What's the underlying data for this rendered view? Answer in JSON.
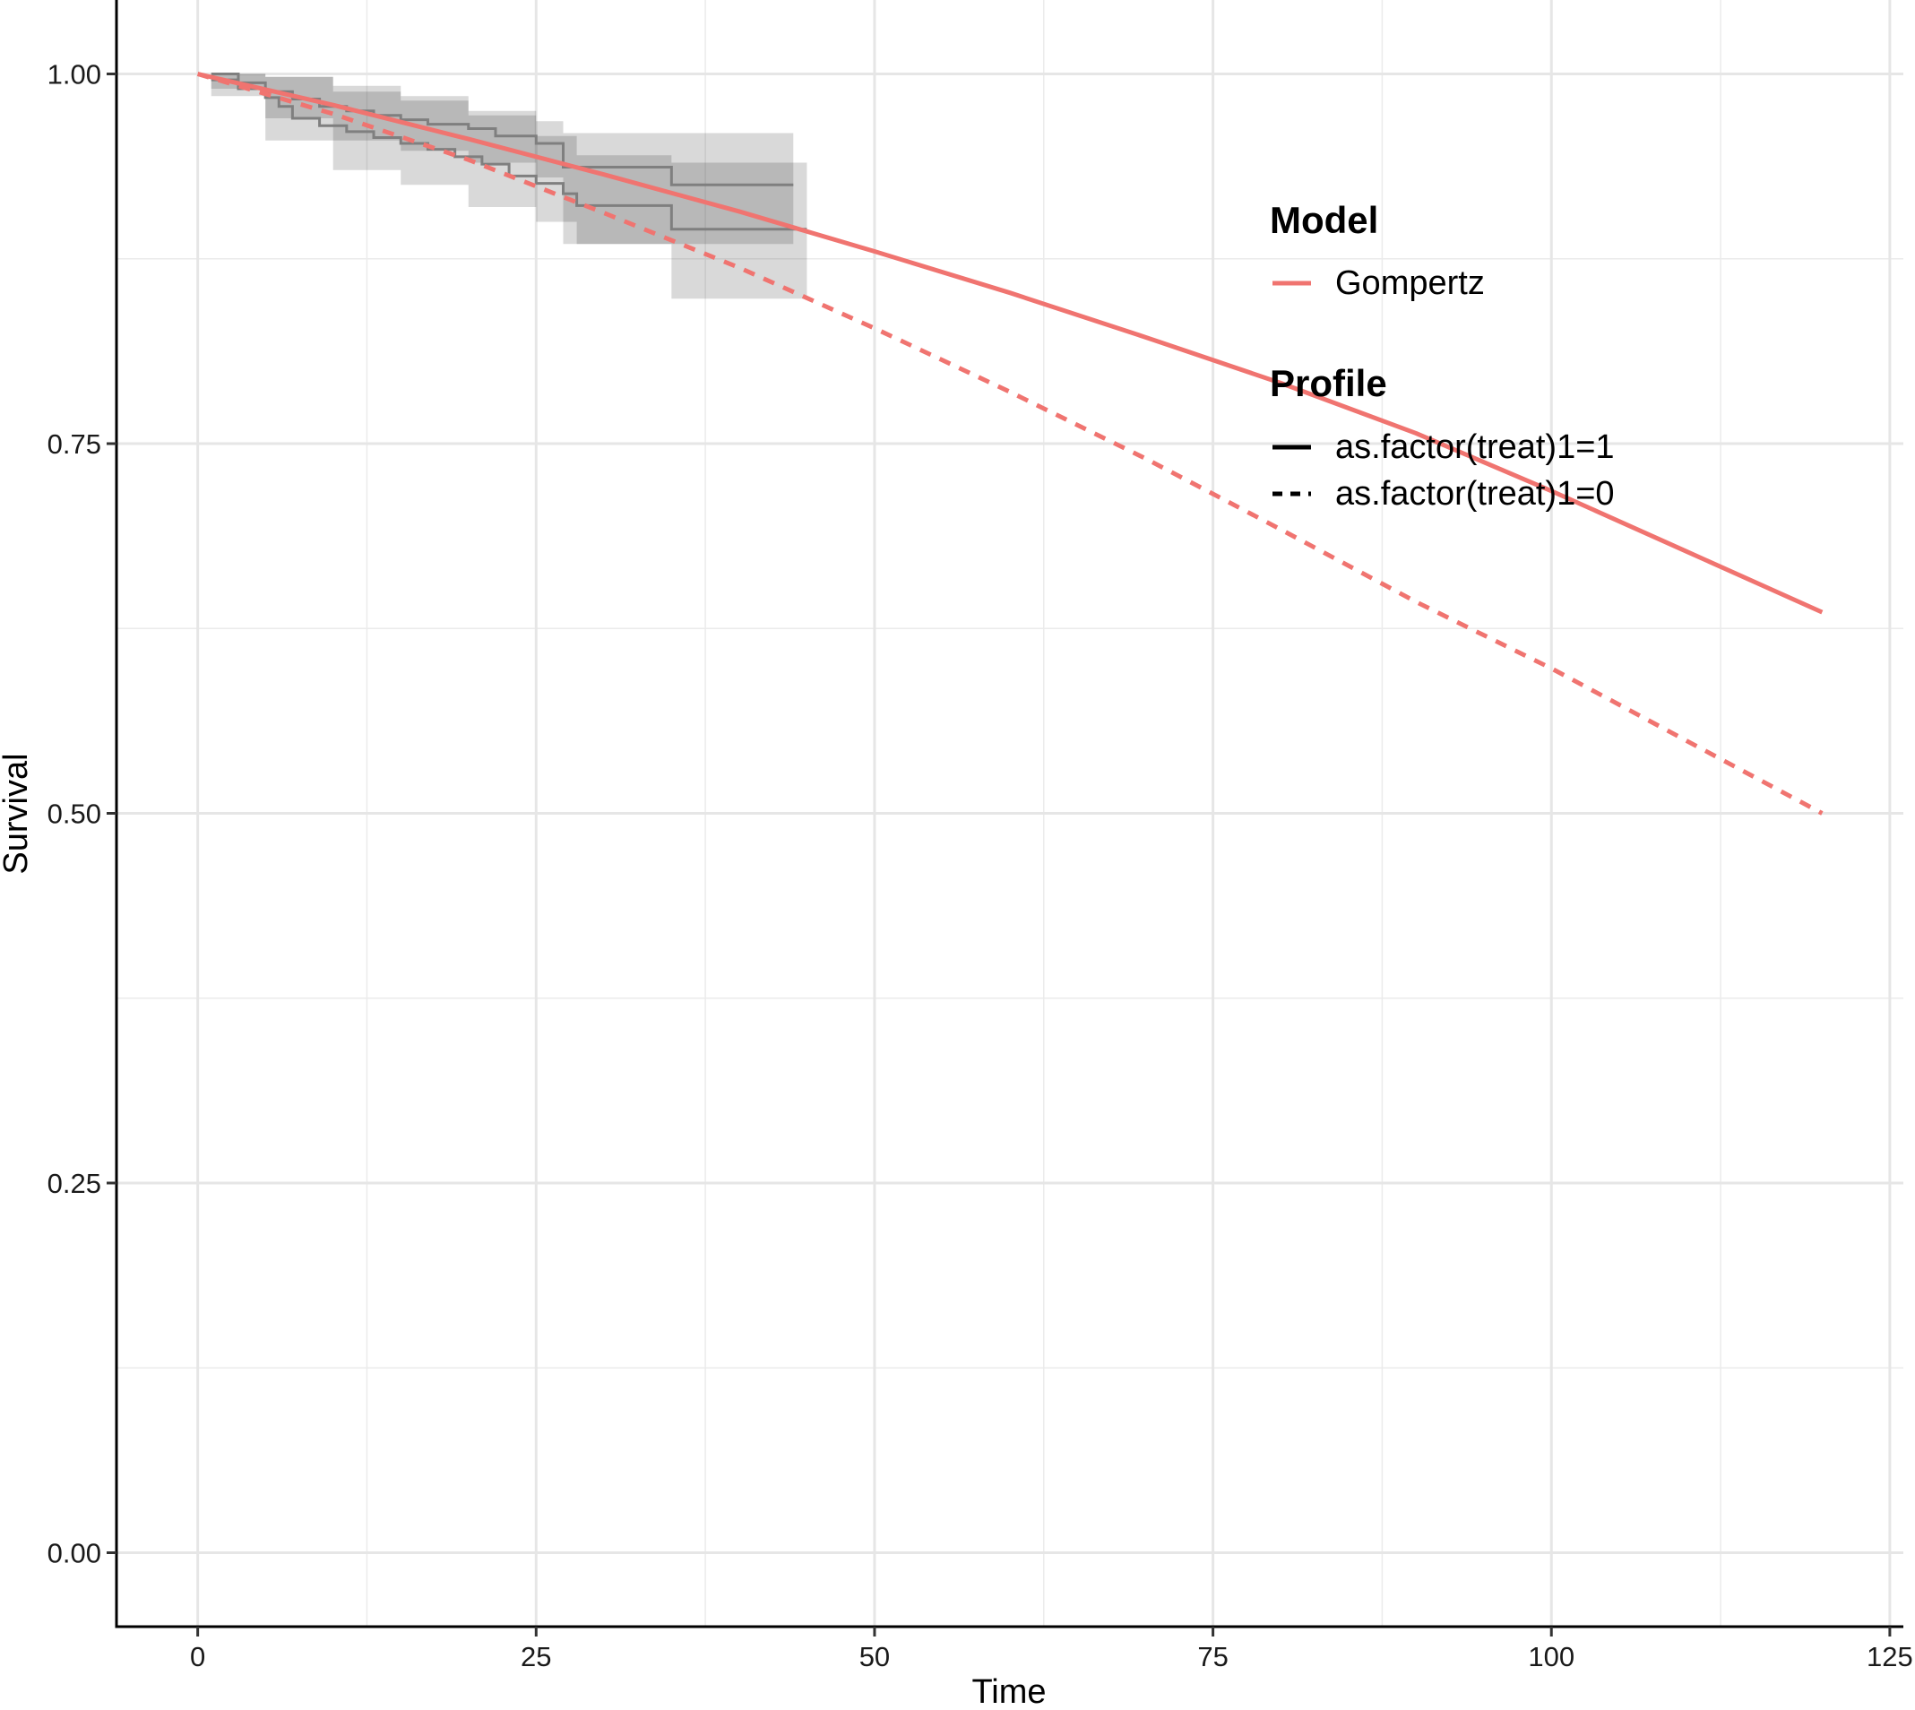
{
  "chart_data": {
    "type": "line",
    "xlabel": "Time",
    "ylabel": "Survival",
    "xlim": [
      -6,
      126
    ],
    "ylim": [
      -0.05,
      1.05
    ],
    "x_ticks": [
      0,
      25,
      50,
      75,
      100,
      125
    ],
    "y_ticks": [
      0.0,
      0.25,
      0.5,
      0.75,
      1.0
    ],
    "x_tick_labels": [
      "0",
      "25",
      "50",
      "75",
      "100",
      "125"
    ],
    "y_tick_labels": [
      "0.00",
      "0.25",
      "0.50",
      "0.75",
      "1.00"
    ],
    "grid": true,
    "legend_position": "right (inside plot)",
    "legend": {
      "model_title": "Model",
      "model_items": [
        {
          "label": "Gompertz",
          "color": "#F07470"
        }
      ],
      "profile_title": "Profile",
      "profile_items": [
        {
          "label": "as.factor(treat)1=1",
          "linetype": "solid"
        },
        {
          "label": "as.factor(treat)1=0",
          "linetype": "dashed"
        }
      ]
    },
    "series": [
      {
        "model": "Gompertz",
        "profile": "as.factor(treat)1=1",
        "linetype": "solid",
        "color": "#F07470",
        "x": [
          0,
          10,
          20,
          30,
          40,
          50,
          60,
          70,
          80,
          90,
          100,
          110,
          120
        ],
        "y": [
          1.0,
          0.979,
          0.956,
          0.932,
          0.907,
          0.88,
          0.852,
          0.822,
          0.791,
          0.757,
          0.718,
          0.677,
          0.636
        ]
      },
      {
        "model": "Gompertz",
        "profile": "as.factor(treat)1=0",
        "linetype": "dashed",
        "color": "#F07470",
        "x": [
          0,
          10,
          20,
          30,
          40,
          50,
          60,
          70,
          80,
          90,
          100,
          110,
          120
        ],
        "y": [
          1.0,
          0.973,
          0.942,
          0.906,
          0.869,
          0.828,
          0.785,
          0.74,
          0.692,
          0.643,
          0.598,
          0.549,
          0.5
        ]
      }
    ],
    "km_curves": [
      {
        "profile": "as.factor(treat)1=1",
        "color": "#7f7f7f",
        "x": [
          1,
          3,
          5,
          7,
          9,
          11,
          13,
          15,
          17,
          20,
          22,
          25,
          27,
          35,
          44
        ],
        "y": [
          1.0,
          0.994,
          0.988,
          0.983,
          0.978,
          0.975,
          0.972,
          0.969,
          0.966,
          0.963,
          0.958,
          0.953,
          0.937,
          0.925,
          0.925
        ]
      },
      {
        "profile": "as.factor(treat)1=0",
        "color": "#7f7f7f",
        "x": [
          1,
          3,
          5,
          6,
          7,
          9,
          11,
          13,
          15,
          17,
          19,
          21,
          23,
          25,
          27,
          28,
          35,
          45
        ],
        "y": [
          0.996,
          0.99,
          0.984,
          0.978,
          0.97,
          0.965,
          0.961,
          0.957,
          0.953,
          0.949,
          0.944,
          0.939,
          0.931,
          0.926,
          0.919,
          0.911,
          0.895,
          0.895
        ]
      }
    ],
    "ci_bands": [
      {
        "profile": "as.factor(treat)1=1",
        "x": [
          1,
          5,
          10,
          15,
          20,
          25,
          27,
          35,
          44
        ],
        "lower": [
          0.99,
          0.97,
          0.955,
          0.948,
          0.94,
          0.93,
          0.885,
          0.885,
          0.885
        ],
        "upper": [
          1.0,
          0.998,
          0.992,
          0.985,
          0.975,
          0.968,
          0.96,
          0.96,
          0.96
        ]
      },
      {
        "profile": "as.factor(treat)1=0",
        "x": [
          1,
          5,
          10,
          15,
          20,
          25,
          28,
          35,
          45
        ],
        "lower": [
          0.985,
          0.955,
          0.935,
          0.925,
          0.91,
          0.9,
          0.885,
          0.848,
          0.848
        ],
        "upper": [
          1.0,
          0.998,
          0.988,
          0.982,
          0.972,
          0.958,
          0.945,
          0.94,
          0.94
        ]
      }
    ]
  }
}
